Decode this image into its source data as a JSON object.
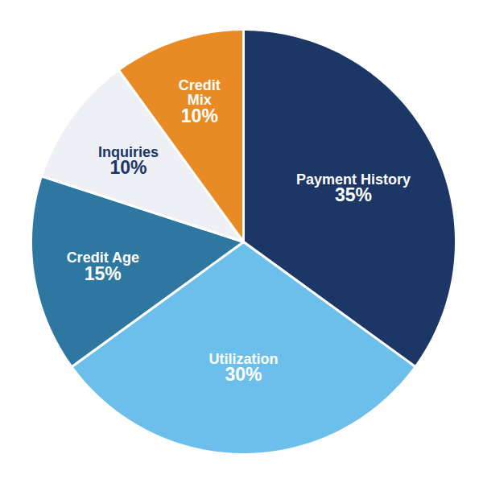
{
  "chart_data": {
    "type": "pie",
    "categories": [
      "Payment History",
      "Utilization",
      "Credit Age",
      "Inquiries",
      "Credit Mix"
    ],
    "values": [
      35,
      30,
      15,
      10,
      10
    ],
    "value_labels": [
      "35%",
      "30%",
      "15%",
      "10%",
      "10%"
    ],
    "colors": [
      "#1c3666",
      "#6cbfea",
      "#2e77a0",
      "#eef0f5",
      "#e88b24"
    ],
    "data_labels": true
  }
}
